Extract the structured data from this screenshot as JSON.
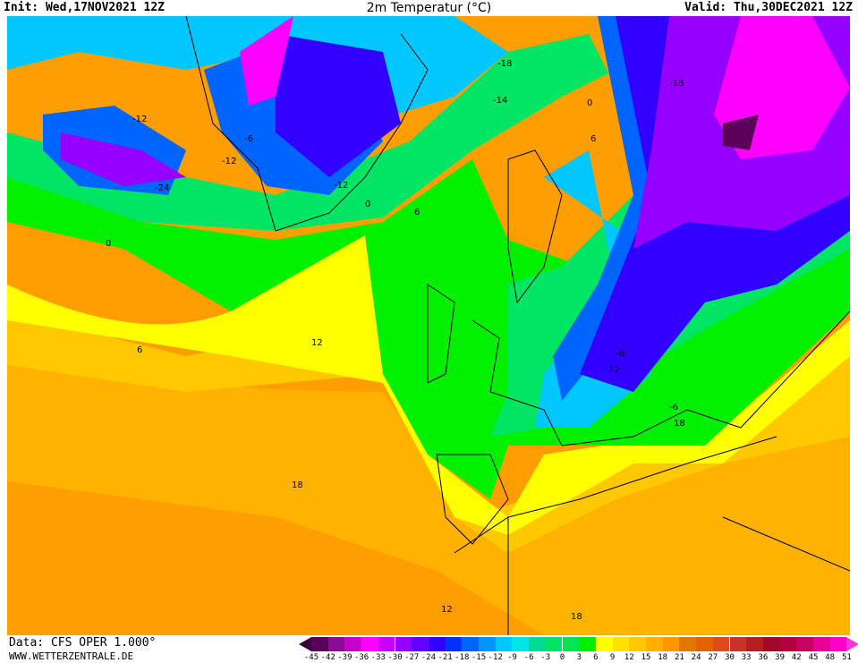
{
  "header": {
    "init": "Init: Wed,17NOV2021 12Z",
    "title": "2m Temperatur (°C)",
    "valid": "Valid: Thu,30DEC2021 12Z"
  },
  "footer": {
    "source": "Data: CFS OPER 1.000°",
    "website": "WWW.WETTERZENTRALE.DE"
  },
  "legend": {
    "labels": [
      "-45",
      "-42",
      "-39",
      "-36",
      "-33",
      "-30",
      "-27",
      "-24",
      "-21",
      "-18",
      "-15",
      "-12",
      "-9",
      "-6",
      "-3",
      "0",
      "3",
      "6",
      "9",
      "12",
      "15",
      "18",
      "21",
      "24",
      "27",
      "30",
      "33",
      "36",
      "39",
      "42",
      "45",
      "48",
      "51"
    ],
    "colors": [
      "#5a005a",
      "#8c0a96",
      "#c800c8",
      "#ff00ff",
      "#c800ff",
      "#9600ff",
      "#6400ff",
      "#3200ff",
      "#0032ff",
      "#0064ff",
      "#0096ff",
      "#00c8ff",
      "#00e6e6",
      "#00dc96",
      "#00e664",
      "#00e650",
      "#00f000",
      "#ffff00",
      "#ffe100",
      "#ffc800",
      "#ffaf00",
      "#ff9600",
      "#e17800",
      "#e16400",
      "#dc4b1e",
      "#c83228",
      "#b41e1e",
      "#a00a28",
      "#b4003c",
      "#c80064",
      "#e60096",
      "#ff00c8"
    ],
    "low_color": "#3c003c",
    "high_color": "#ff32dc"
  },
  "map": {
    "contour_labels": [
      "-18",
      "-18",
      "-14",
      "-12",
      "-12",
      "-12",
      "-24",
      "-6",
      "0",
      "0",
      "6",
      "6",
      "6",
      "12",
      "12",
      "18",
      "18",
      "-6",
      "-6",
      "0",
      "12",
      "18"
    ]
  }
}
